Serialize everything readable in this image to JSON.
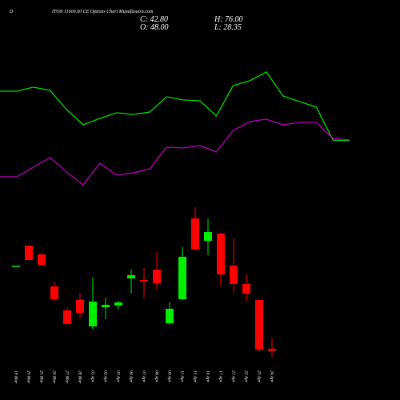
{
  "chart_data": [
    {
      "type": "candlestick",
      "title": "D",
      "subtitle": "ITON 11600.00 CE Options Chart Munafasutra.com",
      "summary_labels": [
        "C: 42.80",
        "H: 76.00",
        "O: 48.00",
        "L: 28.35"
      ],
      "categories": [
        "19 Mar",
        "20 Mar",
        "25 Mar",
        "26 Mar",
        "27 Mar",
        "28 Mar",
        "01 Apr",
        "02 Apr",
        "03 Apr",
        "04 Apr",
        "07 Apr",
        "08 Apr",
        "09 Apr",
        "11 Apr",
        "15 Apr",
        "16 Apr",
        "17 Apr",
        "21 Apr",
        "22 Apr",
        "23 Apr",
        "24 Apr"
      ],
      "open": [
        255,
        306,
        284,
        204,
        144,
        170,
        104,
        152,
        156,
        224,
        220,
        246,
        112,
        172,
        374,
        318,
        336,
        256,
        210,
        170,
        48
      ],
      "high": [
        256,
        306,
        288,
        216,
        152,
        188,
        226,
        176,
        168,
        246,
        250,
        290,
        164,
        302,
        402,
        374,
        338,
        324,
        234,
        170,
        76
      ],
      "low": [
        255,
        270,
        256,
        168,
        108,
        124,
        96,
        122,
        146,
        186,
        174,
        196,
        108,
        170,
        294,
        282,
        204,
        188,
        166,
        40,
        28.35
      ],
      "close": [
        256,
        270,
        258,
        172,
        110,
        138,
        166,
        158,
        164,
        232,
        216,
        212,
        148,
        278,
        296,
        340,
        234,
        210,
        186,
        46,
        42.8
      ],
      "up_color": "#00ee00",
      "down_color": "#ff0000",
      "ylim": [
        0,
        420
      ]
    },
    {
      "type": "line",
      "x": [
        0,
        1,
        2,
        3,
        4,
        5,
        6,
        7,
        8,
        9,
        10,
        11,
        12,
        13,
        14,
        15,
        16,
        17,
        18,
        19,
        20,
        21
      ],
      "xlim": [
        0,
        21
      ],
      "ylim": [
        0,
        100
      ],
      "series": [
        {
          "color": "#00ee00",
          "values": [
            78.8,
            78.8,
            81.9,
            79.4,
            64.4,
            52.5,
            57.5,
            61.9,
            60.6,
            62.5,
            74.4,
            71.9,
            71.3,
            59.4,
            83.1,
            86.9,
            93.8,
            75,
            70.6,
            66.3,
            40.6,
            40
          ]
        },
        {
          "color": "#cc00cc",
          "values": [
            11.9,
            11.9,
            19.4,
            26.9,
            15.6,
            5.6,
            22.5,
            13.1,
            15,
            18.1,
            35,
            34.4,
            36.3,
            31.3,
            48.1,
            55,
            56.9,
            52.5,
            54.4,
            54.4,
            41.9,
            40.6
          ]
        }
      ]
    }
  ]
}
